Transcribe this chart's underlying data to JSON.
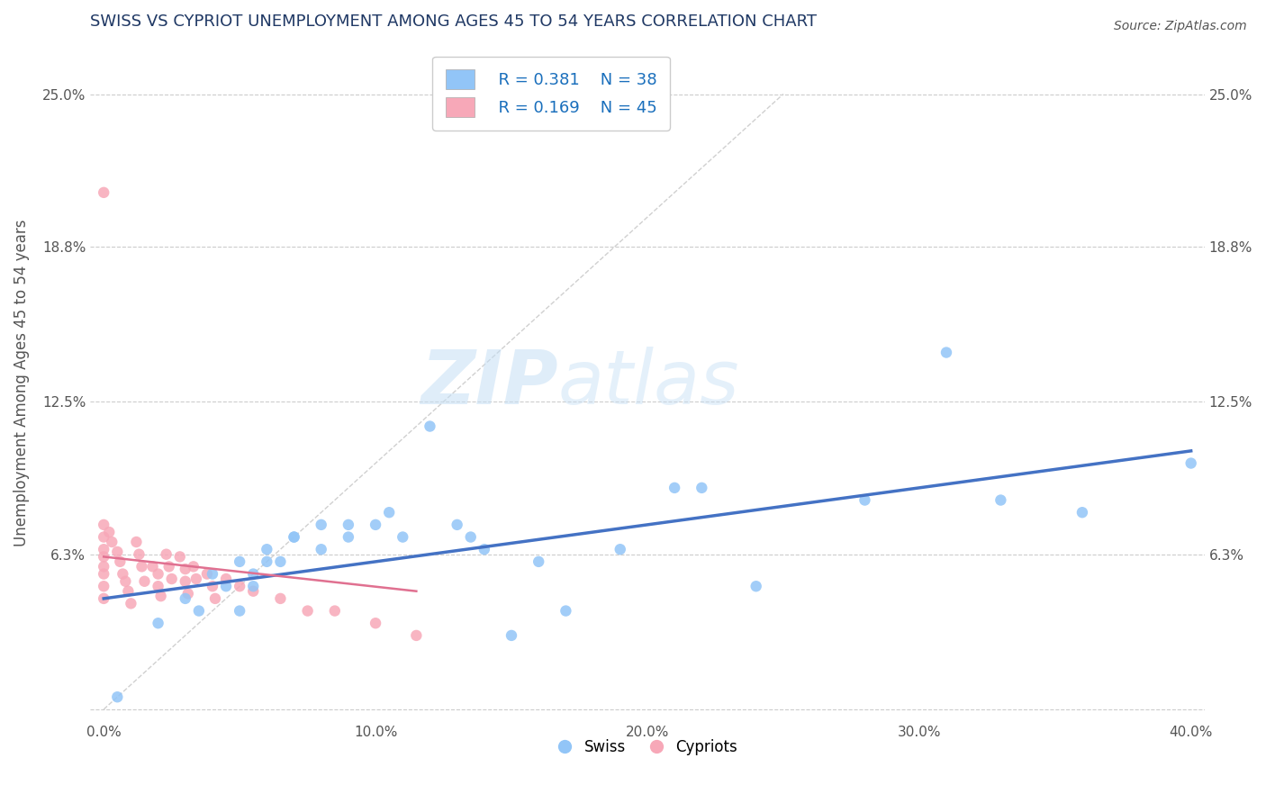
{
  "title": "SWISS VS CYPRIOT UNEMPLOYMENT AMONG AGES 45 TO 54 YEARS CORRELATION CHART",
  "source": "Source: ZipAtlas.com",
  "ylabel": "Unemployment Among Ages 45 to 54 years",
  "xlim": [
    -0.5,
    40.5
  ],
  "ylim": [
    -0.5,
    27.0
  ],
  "xticks": [
    0.0,
    10.0,
    20.0,
    30.0,
    40.0
  ],
  "xticklabels": [
    "0.0%",
    "10.0%",
    "20.0%",
    "30.0%",
    "40.0%"
  ],
  "yticks": [
    0.0,
    6.3,
    12.5,
    18.8,
    25.0
  ],
  "yticklabels": [
    "",
    "6.3%",
    "12.5%",
    "18.8%",
    "25.0%"
  ],
  "legend_r_swiss": "R = 0.381",
  "legend_n_swiss": "N = 38",
  "legend_r_cypriot": "R = 0.169",
  "legend_n_cypriot": "N = 45",
  "swiss_color": "#92c5f7",
  "cypriot_color": "#f7a8b8",
  "swiss_line_color": "#4472c4",
  "cypriot_line_color": "#e07090",
  "ref_line_color": "#d0d0d0",
  "watermark_color": "#d0e8f5",
  "title_color": "#1f3864",
  "axis_label_color": "#555555",
  "tick_color": "#555555",
  "background_color": "#ffffff",
  "grid_color": "#cccccc",
  "swiss_x": [
    0.5,
    2.0,
    3.0,
    3.5,
    4.0,
    4.5,
    5.0,
    5.0,
    5.5,
    5.5,
    6.0,
    6.0,
    6.5,
    7.0,
    7.0,
    8.0,
    8.0,
    9.0,
    9.0,
    10.0,
    10.5,
    11.0,
    12.0,
    13.0,
    13.5,
    14.0,
    15.0,
    16.0,
    17.0,
    19.0,
    21.0,
    22.0,
    24.0,
    28.0,
    31.0,
    33.0,
    36.0,
    40.0
  ],
  "swiss_y": [
    0.5,
    3.5,
    4.5,
    4.0,
    5.5,
    5.0,
    4.0,
    6.0,
    5.0,
    5.5,
    6.5,
    6.0,
    6.0,
    7.0,
    7.0,
    6.5,
    7.5,
    7.0,
    7.5,
    7.5,
    8.0,
    7.0,
    11.5,
    7.5,
    7.0,
    6.5,
    3.0,
    6.0,
    4.0,
    6.5,
    9.0,
    9.0,
    5.0,
    8.5,
    14.5,
    8.5,
    8.0,
    10.0
  ],
  "cypriot_x": [
    0.0,
    0.0,
    0.0,
    0.0,
    0.0,
    0.0,
    0.0,
    0.0,
    0.0,
    0.2,
    0.3,
    0.5,
    0.6,
    0.7,
    0.8,
    0.9,
    1.0,
    1.2,
    1.3,
    1.4,
    1.5,
    1.8,
    2.0,
    2.0,
    2.1,
    2.3,
    2.4,
    2.5,
    2.8,
    3.0,
    3.0,
    3.1,
    3.3,
    3.4,
    3.8,
    4.0,
    4.1,
    4.5,
    5.0,
    5.5,
    6.5,
    7.5,
    8.5,
    10.0,
    11.5
  ],
  "cypriot_y": [
    21.0,
    7.5,
    7.0,
    6.5,
    6.2,
    5.8,
    5.5,
    5.0,
    4.5,
    7.2,
    6.8,
    6.4,
    6.0,
    5.5,
    5.2,
    4.8,
    4.3,
    6.8,
    6.3,
    5.8,
    5.2,
    5.8,
    5.5,
    5.0,
    4.6,
    6.3,
    5.8,
    5.3,
    6.2,
    5.7,
    5.2,
    4.7,
    5.8,
    5.3,
    5.5,
    5.0,
    4.5,
    5.3,
    5.0,
    4.8,
    4.5,
    4.0,
    4.0,
    3.5,
    3.0
  ],
  "swiss_line_x": [
    0.0,
    40.0
  ],
  "swiss_line_y": [
    4.5,
    10.5
  ],
  "cypriot_line_x": [
    0.0,
    11.5
  ],
  "cypriot_line_y": [
    6.2,
    4.8
  ]
}
